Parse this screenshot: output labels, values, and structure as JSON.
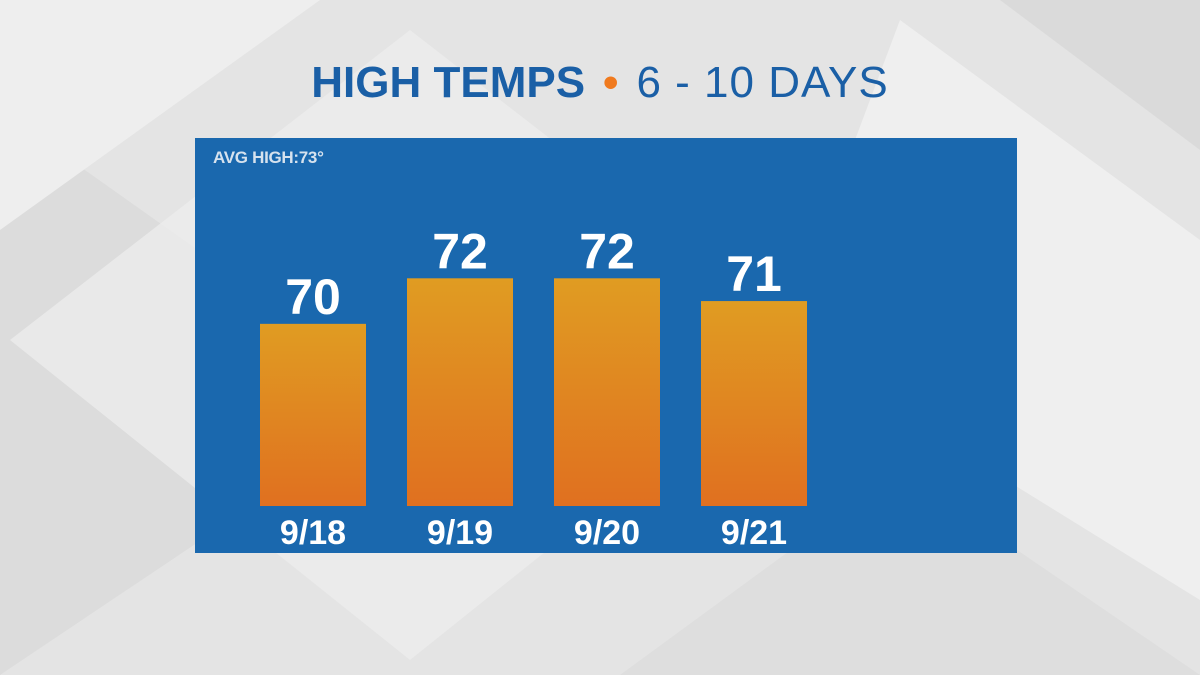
{
  "header": {
    "title_left": "HIGH TEMPS",
    "separator": "•",
    "title_right": "6 - 10 DAYS"
  },
  "panel": {
    "avg_label": "AVG HIGH:73°"
  },
  "colors": {
    "title_blue": "#1a5fa6",
    "accent_orange": "#f07a1e",
    "panel_blue": "#1a68ae",
    "bar_top": "#e09c22",
    "bar_bottom": "#e07020"
  },
  "chart_data": {
    "type": "bar",
    "categories": [
      "9/18",
      "9/19",
      "9/20",
      "9/21"
    ],
    "values": [
      70,
      72,
      72,
      71
    ],
    "data_labels": [
      "70",
      "72",
      "72",
      "71"
    ],
    "title": "HIGH TEMPS • 6 - 10 DAYS",
    "xlabel": "",
    "ylabel": "",
    "ylim": [
      62,
      75
    ],
    "grid": false,
    "legend": "none"
  }
}
